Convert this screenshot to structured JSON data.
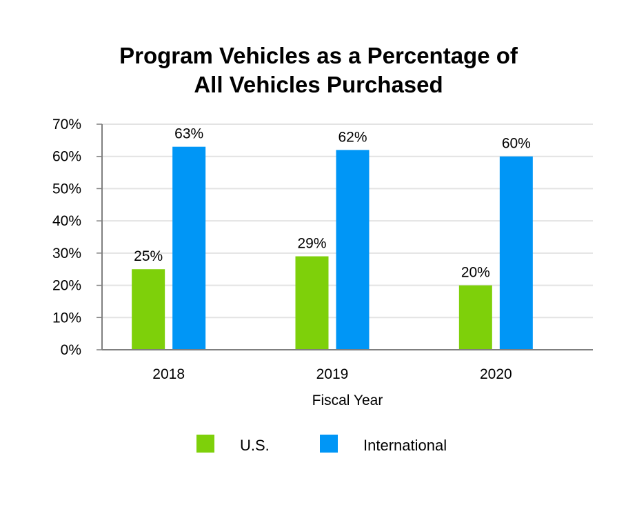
{
  "chart_data": {
    "type": "bar",
    "title_lines": [
      "Program Vehicles as a Percentage of",
      "All Vehicles Purchased"
    ],
    "xlabel": "Fiscal Year",
    "ylabel": "",
    "categories": [
      "2018",
      "2019",
      "2020"
    ],
    "ylim": [
      0,
      70
    ],
    "yticks": [
      0,
      10,
      20,
      30,
      40,
      50,
      60,
      70
    ],
    "ytick_labels": [
      "0%",
      "10%",
      "20%",
      "30%",
      "40%",
      "50%",
      "60%",
      "70%"
    ],
    "grid": true,
    "legend_position": "bottom",
    "series": [
      {
        "name": "U.S.",
        "color": "#7ed00a",
        "values": [
          25,
          29,
          20
        ],
        "labels": [
          "25%",
          "29%",
          "20%"
        ]
      },
      {
        "name": "International",
        "color": "#0096f6",
        "values": [
          63,
          62,
          60
        ],
        "labels": [
          "63%",
          "62%",
          "60%"
        ]
      }
    ]
  }
}
